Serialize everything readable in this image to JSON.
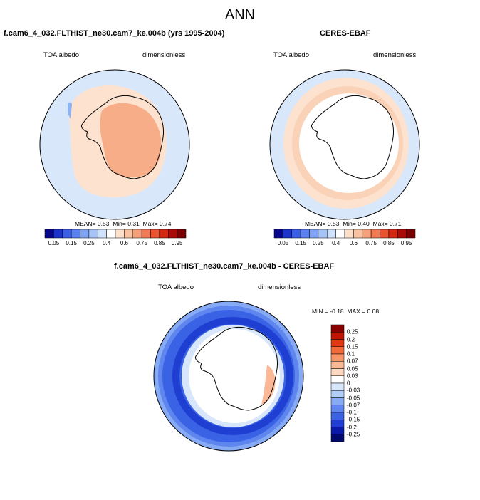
{
  "title": "ANN",
  "panels": [
    {
      "title": "f.cam6_4_032.FLTHIST_ne30.cam7_ke.004b (yrs 1995-2004)",
      "left_label": "TOA albedo",
      "right_label": "dimensionless",
      "stats": {
        "mean_label": "MEAN=",
        "mean": "0.53",
        "min_label": "Min=",
        "min": "0.31",
        "max_label": "Max=",
        "max": "0.74"
      }
    },
    {
      "title": "CERES-EBAF",
      "left_label": "TOA albedo",
      "right_label": "dimensionless",
      "stats": {
        "mean_label": "MEAN=",
        "mean": "0.53",
        "min_label": "Min=",
        "min": "0.40",
        "max_label": "Max=",
        "max": "0.71"
      }
    },
    {
      "title": "f.cam6_4_032.FLTHIST_ne30.cam7_ke.004b - CERES-EBAF",
      "left_label": "TOA albedo",
      "right_label": "dimensionless",
      "stats": {
        "min_label": "MIN =",
        "min": "-0.18",
        "max_label": "MAX =",
        "max": "0.08"
      }
    }
  ],
  "colorbar_abs": {
    "colors": [
      "#08088a",
      "#1c34c8",
      "#3a5fe2",
      "#5a82ee",
      "#7fa4f5",
      "#a6c4f8",
      "#cfe2fb",
      "#ffffff",
      "#fde0cc",
      "#f9c3a2",
      "#f5a27a",
      "#ef7c52",
      "#e75530",
      "#d02a12",
      "#a80c04",
      "#7a0000"
    ],
    "ticks": [
      "0.05",
      "0.15",
      "0.25",
      "0.4",
      "0.6",
      "0.75",
      "0.85",
      "0.95"
    ]
  },
  "colorbar_diff": {
    "colors_top_to_bottom": [
      "#8a0000",
      "#c01400",
      "#e03810",
      "#f06a3a",
      "#f79468",
      "#fab896",
      "#fdd8c0",
      "#ffffff",
      "#d8e6fb",
      "#b2cdf8",
      "#86aaf4",
      "#5f86ee",
      "#3a62e4",
      "#1f3fd2",
      "#0a1aa8",
      "#000a6e"
    ],
    "ticks": [
      "0.25",
      "0.2",
      "0.15",
      "0.1",
      "0.07",
      "0.05",
      "0.03",
      "0",
      "-0.03",
      "-0.05",
      "-0.07",
      "-0.1",
      "-0.15",
      "-0.2",
      "-0.25"
    ]
  }
}
